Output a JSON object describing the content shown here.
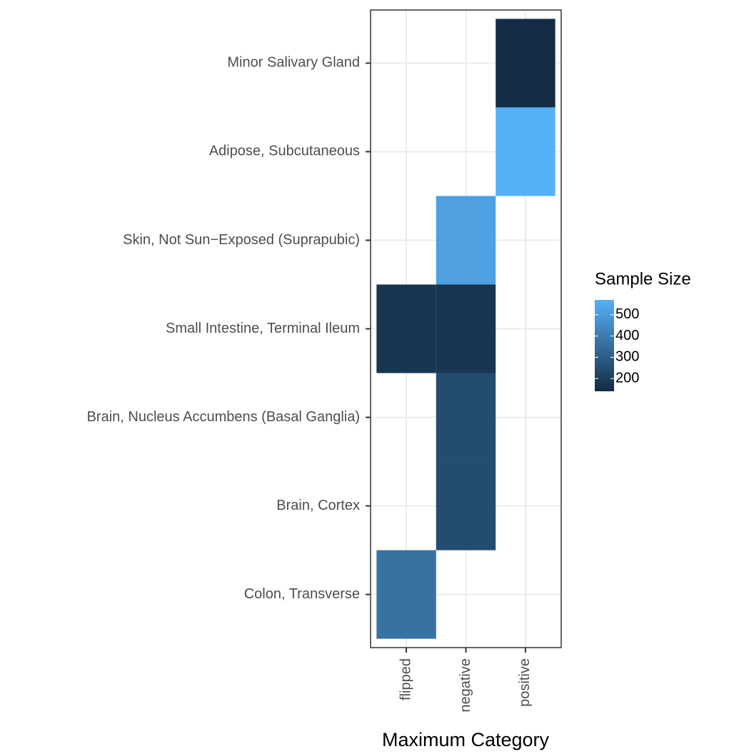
{
  "chart_data": {
    "type": "heatmap",
    "x_label": "Maximum Category",
    "legend_title": "Sample Size",
    "categories": [
      "Minor Salivary Gland",
      "Adipose, Subcutaneous",
      "Skin, Not Sun−Exposed (Suprapubic)",
      "Small Intestine, Terminal Ileum",
      "Brain, Nucleus Accumbens (Basal Ganglia)",
      "Brain, Cortex",
      "Colon, Transverse"
    ],
    "series": [
      {
        "name": "flipped",
        "values": [
          null,
          null,
          null,
          174,
          null,
          null,
          368
        ]
      },
      {
        "name": "negative",
        "values": [
          null,
          null,
          517,
          174,
          246,
          246,
          null
        ]
      },
      {
        "name": "positive",
        "values": [
          144,
          570,
          null,
          null,
          null,
          null,
          null
        ]
      }
    ],
    "low_color": "#132B43",
    "high_color": "#56B1F7",
    "colorbar_lim": [
      140,
      570
    ],
    "colorbar_ticks": [
      200,
      300,
      400,
      500
    ],
    "grid": true
  }
}
